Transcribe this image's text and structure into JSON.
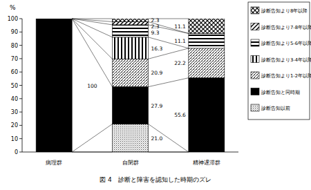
{
  "chart_data": {
    "type": "bar",
    "stacked": true,
    "title": "図 4　診断と障害を認知した時期のズレ",
    "y_label": "%",
    "categories": [
      "病理群",
      "自閉群",
      "精神遅滞群"
    ],
    "series": [
      {
        "name": "診断告知以前",
        "values": [
          0,
          21.0,
          0
        ],
        "value_labels": [
          null,
          "21.0",
          null
        ]
      },
      {
        "name": "診断告知と同時期",
        "values": [
          100,
          27.9,
          55.6
        ],
        "value_labels": [
          "100",
          "27.9",
          "55.6"
        ]
      },
      {
        "name": "診断告知より1-2年以降",
        "values": [
          0,
          20.9,
          22.2
        ],
        "value_labels": [
          null,
          "20.9",
          "22.2"
        ]
      },
      {
        "name": "診断告知より3-4年以降",
        "values": [
          0,
          16.3,
          0
        ],
        "value_labels": [
          null,
          "16.3",
          null
        ]
      },
      {
        "name": "診断告知より5-6年以降",
        "values": [
          0,
          9.3,
          11.1
        ],
        "value_labels": [
          null,
          "9.3",
          "11.1"
        ]
      },
      {
        "name": "診断告知より7-8年以降",
        "values": [
          0,
          2.3,
          0
        ],
        "value_labels": [
          null,
          "2.3",
          null
        ]
      },
      {
        "name": "診断告知より8年以降",
        "values": [
          0,
          2.3,
          11.1
        ],
        "value_labels": [
          null,
          "2.3",
          "11.1"
        ]
      }
    ],
    "ylim": [
      0,
      100
    ],
    "yticks": [
      0,
      10,
      20,
      30,
      40,
      50,
      60,
      70,
      80,
      90,
      100
    ],
    "grid": false,
    "legend": "right",
    "data_labels": true
  }
}
